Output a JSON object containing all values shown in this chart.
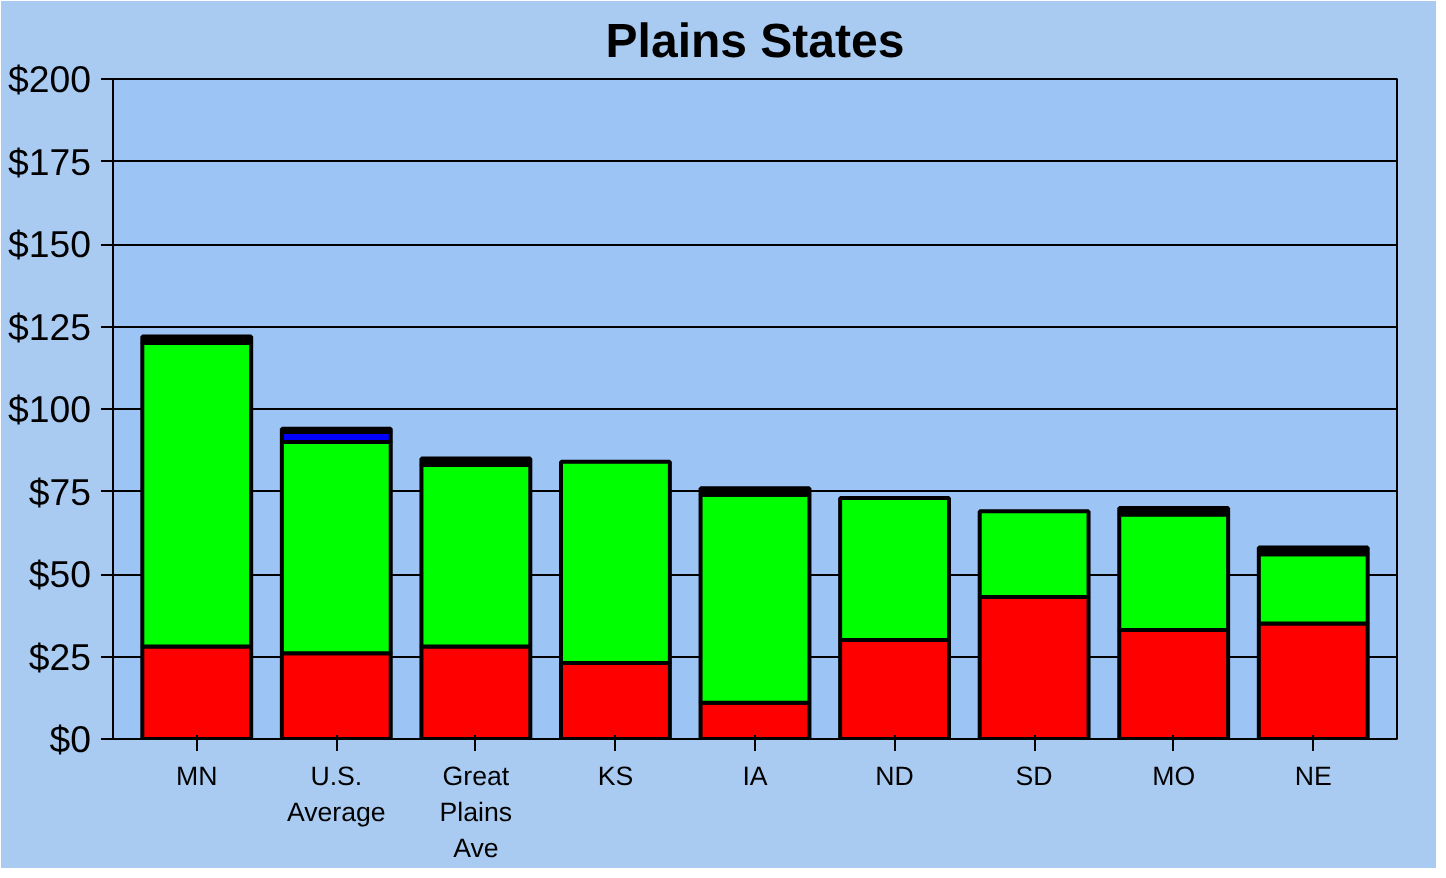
{
  "chart_data": {
    "type": "bar",
    "title": "Plains States",
    "stacked": true,
    "categories": [
      "MN",
      "U.S.\nAverage",
      "Great\nPlains\nAve",
      "KS",
      "IA",
      "ND",
      "SD",
      "MO",
      "NE"
    ],
    "series": [
      {
        "color": "#ff0000",
        "values": [
          28,
          26,
          28,
          23,
          11,
          30,
          43,
          33,
          35
        ]
      },
      {
        "color": "#00ff00",
        "values": [
          92,
          64,
          55,
          61,
          63,
          43,
          26,
          35,
          21
        ]
      },
      {
        "color": "#0000ff",
        "values": [
          null,
          3,
          null,
          null,
          null,
          null,
          null,
          null,
          null
        ]
      },
      {
        "color": "#000000",
        "values": [
          2,
          1,
          2,
          null,
          2,
          null,
          null,
          2,
          2
        ]
      }
    ],
    "ylim": [
      0,
      200
    ],
    "yticks": [
      {
        "value": 0,
        "label": "$0"
      },
      {
        "value": 25,
        "label": "$25"
      },
      {
        "value": 50,
        "label": "$50"
      },
      {
        "value": 75,
        "label": "$75"
      },
      {
        "value": 100,
        "label": "$100"
      },
      {
        "value": 125,
        "label": "$125"
      },
      {
        "value": 150,
        "label": "$150"
      },
      {
        "value": 175,
        "label": "$175"
      },
      {
        "value": 200,
        "label": "$200"
      }
    ],
    "grid": "y"
  }
}
